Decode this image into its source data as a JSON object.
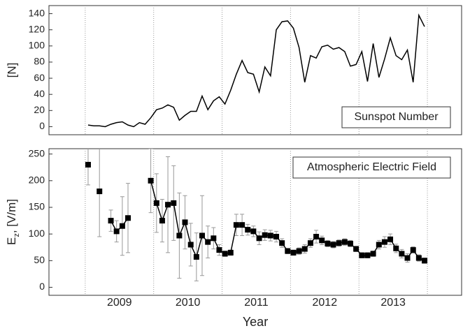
{
  "chart_data": [
    {
      "type": "line",
      "ylabel": "[N]",
      "x": [
        2009.042,
        2009.125,
        2009.208,
        2009.292,
        2009.375,
        2009.458,
        2009.542,
        2009.625,
        2009.708,
        2009.792,
        2009.875,
        2009.958,
        2010.042,
        2010.125,
        2010.208,
        2010.292,
        2010.375,
        2010.458,
        2010.542,
        2010.625,
        2010.708,
        2010.792,
        2010.875,
        2010.958,
        2011.042,
        2011.125,
        2011.208,
        2011.292,
        2011.375,
        2011.458,
        2011.542,
        2011.625,
        2011.708,
        2011.792,
        2011.875,
        2011.958,
        2012.042,
        2012.125,
        2012.208,
        2012.292,
        2012.375,
        2012.458,
        2012.542,
        2012.625,
        2012.708,
        2012.792,
        2012.875,
        2012.958,
        2013.042,
        2013.125,
        2013.208,
        2013.292,
        2013.375,
        2013.458,
        2013.542,
        2013.625,
        2013.708,
        2013.792,
        2013.875,
        2013.958
      ],
      "series": [
        {
          "name": "Sunspot Number",
          "color": "#000000",
          "values": [
            2,
            1,
            1,
            0,
            3,
            5,
            6,
            2,
            0,
            5,
            3,
            11,
            21,
            23,
            27,
            24,
            8,
            14,
            19,
            19,
            38,
            21,
            32,
            37,
            28,
            45,
            65,
            82,
            67,
            65,
            43,
            74,
            63,
            120,
            130,
            131,
            122,
            98,
            55,
            88,
            85,
            99,
            101,
            96,
            98,
            93,
            75,
            77,
            93,
            56,
            103,
            61,
            84,
            110,
            88,
            83,
            95,
            55,
            138,
            124
          ]
        }
      ],
      "xlim": [
        2008.47,
        2014.5
      ],
      "xgridlines": [
        2009,
        2010,
        2011,
        2012,
        2013,
        2014
      ],
      "ylim": [
        -10,
        150
      ],
      "yticks": [
        0,
        20,
        40,
        60,
        80,
        100,
        120,
        140
      ],
      "legend": "lower right"
    },
    {
      "type": "errorbar",
      "ylabel": [
        "E",
        "z",
        ", [V/m]"
      ],
      "xlabel": "Year",
      "x": [
        2009.042,
        2009.125,
        2009.208,
        2009.292,
        2009.375,
        2009.458,
        2009.542,
        2009.625,
        2009.708,
        2009.792,
        2009.875,
        2009.958,
        2010.042,
        2010.125,
        2010.208,
        2010.292,
        2010.375,
        2010.458,
        2010.542,
        2010.625,
        2010.708,
        2010.792,
        2010.875,
        2010.958,
        2011.042,
        2011.125,
        2011.208,
        2011.292,
        2011.375,
        2011.458,
        2011.542,
        2011.625,
        2011.708,
        2011.792,
        2011.875,
        2011.958,
        2012.042,
        2012.125,
        2012.208,
        2012.292,
        2012.375,
        2012.458,
        2012.542,
        2012.625,
        2012.708,
        2012.792,
        2012.875,
        2012.958,
        2013.042,
        2013.125,
        2013.208,
        2013.292,
        2013.375,
        2013.458,
        2013.542,
        2013.625,
        2013.708,
        2013.792,
        2013.875,
        2013.958
      ],
      "series": [
        {
          "name": "Atmospheric Electric Field",
          "color": "#000000",
          "error_color": "#999999",
          "values": [
            230,
            null,
            180,
            null,
            125,
            105,
            115,
            130,
            null,
            null,
            null,
            200,
            158,
            125,
            155,
            158,
            97,
            122,
            80,
            57,
            97,
            85,
            92,
            70,
            63,
            65,
            117,
            117,
            108,
            105,
            92,
            98,
            97,
            95,
            83,
            68,
            65,
            68,
            72,
            83,
            95,
            88,
            82,
            80,
            83,
            85,
            82,
            72,
            60,
            60,
            63,
            80,
            85,
            90,
            73,
            63,
            55,
            70,
            55,
            50
          ],
          "errors": [
            38,
            null,
            85,
            null,
            20,
            20,
            55,
            65,
            null,
            null,
            null,
            60,
            55,
            40,
            90,
            70,
            80,
            50,
            40,
            45,
            75,
            30,
            20,
            10,
            5,
            5,
            20,
            20,
            10,
            10,
            12,
            10,
            10,
            10,
            8,
            5,
            5,
            6,
            8,
            8,
            12,
            8,
            6,
            6,
            6,
            6,
            6,
            5,
            5,
            5,
            5,
            8,
            10,
            10,
            8,
            8,
            8,
            6,
            6,
            5
          ]
        }
      ],
      "xlim": [
        2008.47,
        2014.5
      ],
      "xgridlines": [
        2009,
        2010,
        2011,
        2012,
        2013,
        2014
      ],
      "xticks": [
        {
          "value": 2009.5,
          "label": "2009"
        },
        {
          "value": 2010.5,
          "label": "2010"
        },
        {
          "value": 2011.5,
          "label": "2011"
        },
        {
          "value": 2012.5,
          "label": "2012"
        },
        {
          "value": 2013.5,
          "label": "2013"
        }
      ],
      "ylim": [
        -15,
        260
      ],
      "yticks": [
        0,
        50,
        100,
        150,
        200,
        250
      ],
      "legend": "upper right"
    }
  ]
}
